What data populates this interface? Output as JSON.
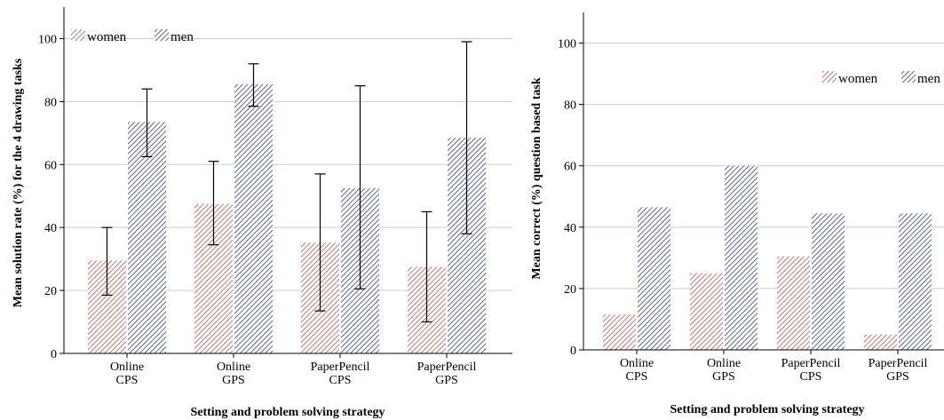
{
  "colors": {
    "women": "#c0504d",
    "men": "#2f3d8a",
    "gridline": "#cccccc",
    "axis": "#000000"
  },
  "chart_data": [
    {
      "type": "bar",
      "categories": [
        [
          "Online",
          "CPS"
        ],
        [
          "Online",
          "GPS"
        ],
        [
          "PaperPencil",
          "CPS"
        ],
        [
          "PaperPencil",
          "GPS"
        ]
      ],
      "series": [
        {
          "name": "women",
          "values": [
            29.5,
            47.5,
            35.2,
            27.5
          ],
          "error_low": [
            18.5,
            34.5,
            13.5,
            10.0
          ],
          "error_high": [
            40.0,
            61.0,
            57.0,
            45.0
          ],
          "pattern": "hatch-women"
        },
        {
          "name": "men",
          "values": [
            73.5,
            85.5,
            52.5,
            68.5
          ],
          "error_low": [
            62.5,
            78.5,
            20.5,
            38.0
          ],
          "error_high": [
            84.0,
            92.0,
            85.0,
            99.0
          ],
          "pattern": "hatch-men"
        }
      ],
      "xlabel": "Setting and problem solving strategy",
      "ylabel": "Mean solution rate (%) for the 4 drawing tasks",
      "ylim": [
        0,
        110
      ],
      "yticks": [
        0,
        20,
        40,
        60,
        80,
        100
      ],
      "grid": true,
      "legend_position": "top-left",
      "error_bars": true
    },
    {
      "type": "bar",
      "categories": [
        [
          "Online",
          "CPS"
        ],
        [
          "Online",
          "GPS"
        ],
        [
          "PaperPencil",
          "CPS"
        ],
        [
          "PaperPencil",
          "GPS"
        ]
      ],
      "series": [
        {
          "name": "women",
          "values": [
            11.5,
            25.0,
            30.5,
            5.0
          ],
          "pattern": "hatch-women"
        },
        {
          "name": "men",
          "values": [
            46.5,
            60.0,
            44.5,
            44.5
          ],
          "pattern": "hatch-men"
        }
      ],
      "xlabel": "Setting and problem solving strategy",
      "ylabel": "Mean correct (%) question based task",
      "ylim": [
        0,
        110
      ],
      "yticks": [
        0,
        20,
        40,
        60,
        80,
        100
      ],
      "grid": true,
      "legend_position": "top-right",
      "error_bars": false
    }
  ]
}
